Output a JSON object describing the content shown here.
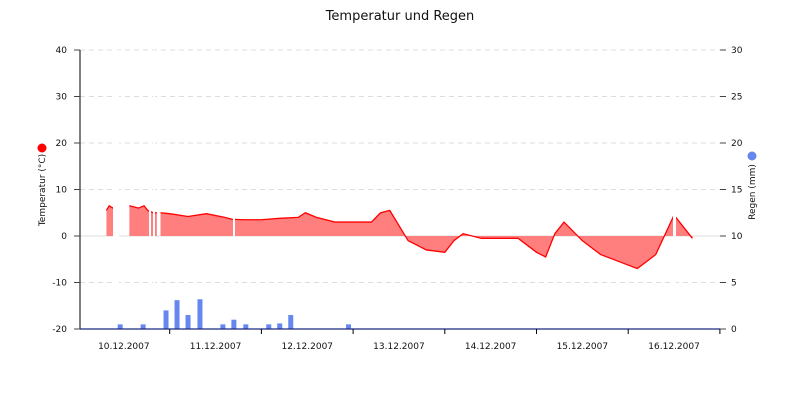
{
  "chart_data": {
    "type": "area+bar",
    "title": "Temperatur und Regen",
    "xlabel": "",
    "ylabel_left": "Temperatur (°C)",
    "ylabel_right": "Regen (mm)",
    "ylim_left": [
      -20,
      40
    ],
    "ylim_right": [
      0,
      30
    ],
    "yticks_left": [
      40,
      30,
      20,
      10,
      0,
      -10,
      -20
    ],
    "yticks_right": [
      30,
      25,
      20,
      15,
      10,
      5,
      0
    ],
    "x_categories": [
      "10.12.2007",
      "11.12.2007",
      "12.12.2007",
      "13.12.2007",
      "14.12.2007",
      "15.12.2007",
      "16.12.2007"
    ],
    "grid": true,
    "legend": [
      {
        "name": "Temperatur (°C)",
        "color": "#ff0000",
        "position": "left-axis"
      },
      {
        "name": "Regen (mm)",
        "color": "#6688ee",
        "position": "right-axis"
      }
    ],
    "series": [
      {
        "name": "Temperatur",
        "type": "area",
        "color": "#ff0000",
        "fill": "#ff7f7f",
        "unit": "°C",
        "x_day": [
          0.31,
          0.34,
          0.38,
          0.42,
          0.56,
          0.66,
          0.72,
          0.76,
          0.82,
          0.86,
          0.9,
          1.0,
          1.2,
          1.4,
          1.6,
          1.68,
          1.8,
          2.0,
          2.2,
          2.4,
          2.48,
          2.6,
          2.8,
          3.0,
          3.1,
          3.2,
          3.3,
          3.4,
          3.6,
          3.8,
          4.0,
          4.1,
          4.2,
          4.4,
          4.5,
          4.6,
          4.8,
          5.0,
          5.1,
          5.2,
          5.3,
          5.5,
          5.7,
          5.9,
          6.1,
          6.3,
          6.5,
          6.7
        ],
        "values": [
          5.5,
          6.5,
          6.0,
          6.8,
          6.5,
          6.0,
          6.5,
          5.5,
          5.0,
          5.0,
          5.0,
          4.8,
          4.2,
          4.8,
          4.0,
          3.6,
          3.5,
          3.5,
          3.8,
          4.0,
          5.0,
          4.0,
          3.0,
          3.0,
          3.0,
          3.0,
          5.0,
          5.5,
          -1.0,
          -3.0,
          -3.5,
          -1.0,
          0.5,
          -0.5,
          -0.5,
          -0.5,
          -0.5,
          -3.5,
          -4.5,
          0.5,
          3.0,
          -1.0,
          -4.0,
          -5.5,
          -7.0,
          -4.0,
          4.5,
          -0.5
        ]
      },
      {
        "name": "Regen",
        "type": "bar",
        "color": "#6688ee",
        "unit": "mm",
        "x_day": [
          0.46,
          0.71,
          0.96,
          1.08,
          1.2,
          1.33,
          1.58,
          1.7,
          1.83,
          2.08,
          2.2,
          2.32,
          2.95
        ],
        "values": [
          0.5,
          0.5,
          2.0,
          3.1,
          1.5,
          3.2,
          0.5,
          1.0,
          0.5,
          0.5,
          0.6,
          1.5,
          0.5
        ]
      }
    ]
  }
}
